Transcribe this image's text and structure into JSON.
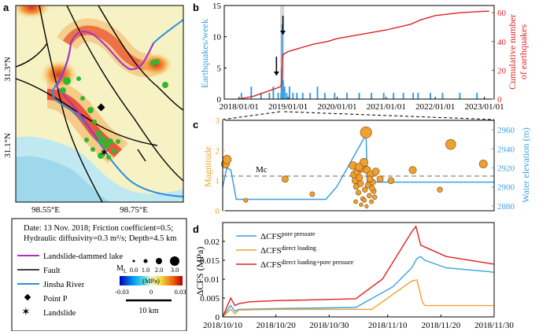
{
  "panels": {
    "a": {
      "letter": "a",
      "lat_labels": [
        "31.3°N",
        "31.1°N"
      ],
      "lon_labels": [
        "98.55°E",
        "98.75°E"
      ],
      "info_lines": [
        "Date: 13 Nov. 2018; Friction coefficient=0.5;",
        "Hydraulic diffusivity=0.3 m²/s; Depth=4.5 km"
      ],
      "legend": {
        "lake": "Landslide-dammed lake",
        "fault": "Fault",
        "river": "Jinsha River",
        "point_p": "Point P",
        "landslide": "Landslide",
        "ml_label": "M",
        "ml_sub": "L",
        "ml_values": [
          "0.0",
          "1.0",
          "2.0",
          "3.0"
        ],
        "colorbar_unit": "(MPa)",
        "colorbar_ticks": [
          "-0.03",
          "0",
          "0.03"
        ],
        "scalebar": "10 km"
      },
      "colors": {
        "fault": "#000000",
        "river": "#2e8fe0",
        "lake": "#b02ec0",
        "quake": "#2fb82f"
      }
    },
    "b": {
      "letter": "b",
      "ylabel_left": "Earthquakes/week",
      "ylabel_right_1": "Cumulative number",
      "ylabel_right_2": "of earthquakes",
      "colors": {
        "bars": "#3a9ee0",
        "line": "#e02020"
      }
    },
    "c": {
      "letter": "c",
      "ylabel_left": "Magnitude",
      "ylabel_right": "Water elevation (m)",
      "mc_label": "Mc",
      "colors": {
        "dots": "#f0a030",
        "water": "#3aa0e0"
      }
    },
    "d": {
      "letter": "d",
      "ylabel_main": "ΔCFS (MPa)",
      "legend": [
        {
          "main": "ΔCFS",
          "sup": "pore pressure",
          "color": "#3aa0e0"
        },
        {
          "main": "ΔCFS",
          "sup": "direct loading",
          "color": "#f0a030"
        },
        {
          "main": "ΔCFS",
          "sup": "direct loading+pore pressure",
          "color": "#e02020"
        }
      ]
    }
  },
  "chart_data": [
    {
      "id": "b",
      "type": "bar",
      "title": "",
      "xlabel": "",
      "ylabel": "Earthquakes/week",
      "ylabel_right": "Cumulative number of earthquakes",
      "x_ticks": [
        "2018/01/01",
        "2019/01/01",
        "2020/01/01",
        "2021/01/01",
        "2022/01/01",
        "2023/01/01"
      ],
      "ylim": [
        0,
        15
      ],
      "y_ticks": [
        "0",
        "5",
        "10",
        "15"
      ],
      "ylim_right": [
        0,
        65
      ],
      "y_ticks_right": [
        "0",
        "20",
        "40",
        "60"
      ],
      "weekly_bars": [
        {
          "year": 2018.05,
          "v": 1
        },
        {
          "year": 2018.25,
          "v": 2
        },
        {
          "year": 2018.45,
          "v": 1
        },
        {
          "year": 2018.62,
          "v": 1
        },
        {
          "year": 2018.7,
          "v": 2
        },
        {
          "year": 2018.8,
          "v": 1
        },
        {
          "year": 2018.86,
          "v": 1
        },
        {
          "year": 2018.87,
          "v": 5
        },
        {
          "year": 2018.88,
          "v": 12
        },
        {
          "year": 2018.9,
          "v": 3
        },
        {
          "year": 2018.93,
          "v": 2
        },
        {
          "year": 2018.97,
          "v": 1
        },
        {
          "year": 2019.03,
          "v": 2
        },
        {
          "year": 2019.1,
          "v": 1
        },
        {
          "year": 2019.18,
          "v": 1
        },
        {
          "year": 2019.3,
          "v": 1
        },
        {
          "year": 2019.45,
          "v": 1
        },
        {
          "year": 2019.6,
          "v": 2
        },
        {
          "year": 2019.75,
          "v": 1
        },
        {
          "year": 2019.95,
          "v": 1
        },
        {
          "year": 2020.2,
          "v": 1
        },
        {
          "year": 2020.45,
          "v": 1
        },
        {
          "year": 2020.7,
          "v": 1
        },
        {
          "year": 2020.95,
          "v": 1
        },
        {
          "year": 2021.15,
          "v": 1
        },
        {
          "year": 2021.35,
          "v": 1
        },
        {
          "year": 2021.55,
          "v": 1
        },
        {
          "year": 2021.65,
          "v": 1
        },
        {
          "year": 2021.9,
          "v": 1
        },
        {
          "year": 2022.15,
          "v": 1
        },
        {
          "year": 2022.5,
          "v": 1
        },
        {
          "year": 2022.85,
          "v": 1
        }
      ],
      "cumulative": [
        [
          2018.0,
          0
        ],
        [
          2018.3,
          2
        ],
        [
          2018.55,
          5
        ],
        [
          2018.8,
          8
        ],
        [
          2018.86,
          9
        ],
        [
          2018.875,
          15
        ],
        [
          2018.885,
          28
        ],
        [
          2018.9,
          31
        ],
        [
          2019.0,
          33
        ],
        [
          2019.2,
          35
        ],
        [
          2019.5,
          38
        ],
        [
          2019.8,
          40
        ],
        [
          2020.0,
          42
        ],
        [
          2020.5,
          45
        ],
        [
          2021.0,
          48
        ],
        [
          2021.5,
          52
        ],
        [
          2021.7,
          55
        ],
        [
          2022.0,
          58
        ],
        [
          2022.5,
          60
        ],
        [
          2023.0,
          61
        ],
        [
          2023.1,
          61
        ]
      ],
      "highlight_range": [
        2018.84,
        2018.92
      ]
    },
    {
      "id": "c",
      "type": "scatter",
      "ylabel": "Magnitude",
      "ylabel_right": "Water elevation (m)",
      "ylim": [
        0,
        3
      ],
      "y_ticks": [
        "0",
        "1",
        "2",
        "3"
      ],
      "ylim_right": [
        2875,
        2970
      ],
      "y_ticks_right": [
        "2880",
        "2900",
        "2920",
        "2940",
        "2960"
      ],
      "mc": 1.15,
      "points": [
        [
          1.0,
          1.55
        ],
        [
          1.6,
          1.7
        ],
        [
          8.5,
          0.35
        ],
        [
          23,
          1.05
        ],
        [
          33,
          0.55
        ],
        [
          48,
          1.5
        ],
        [
          48.4,
          1.2
        ],
        [
          48.8,
          1.0
        ],
        [
          49.2,
          0.8
        ],
        [
          49.6,
          1.3
        ],
        [
          50.0,
          0.6
        ],
        [
          50.4,
          1.1
        ],
        [
          50.8,
          0.9
        ],
        [
          51.2,
          1.4
        ],
        [
          51.6,
          0.4
        ],
        [
          52.0,
          1.6
        ],
        [
          52.4,
          0.7
        ],
        [
          52.8,
          2.6
        ],
        [
          53.2,
          1.35
        ],
        [
          53.6,
          0.85
        ],
        [
          54.0,
          0.5
        ],
        [
          54.4,
          1.2
        ],
        [
          54.8,
          0.3
        ],
        [
          55.2,
          0.95
        ],
        [
          55.6,
          0.65
        ],
        [
          56.0,
          0.45
        ],
        [
          56.4,
          1.3
        ],
        [
          49.0,
          0.3
        ],
        [
          51.0,
          0.2
        ],
        [
          53.0,
          0.15
        ],
        [
          55.0,
          0.75
        ],
        [
          50.2,
          1.45
        ],
        [
          52.2,
          0.35
        ],
        [
          54.2,
          1.05
        ],
        [
          58,
          1.05
        ],
        [
          62,
          1.0
        ],
        [
          70,
          1.35
        ],
        [
          80,
          0.7
        ],
        [
          84,
          2.2
        ],
        [
          96,
          1.55
        ]
      ],
      "water": [
        [
          0,
          2900
        ],
        [
          1.5,
          2920
        ],
        [
          3.0,
          2918
        ],
        [
          5,
          2887
        ],
        [
          38,
          2887
        ],
        [
          42,
          2900
        ],
        [
          52.8,
          2955
        ],
        [
          53.3,
          2905
        ],
        [
          100,
          2905
        ]
      ]
    },
    {
      "id": "d",
      "type": "line",
      "ylabel": "ΔCFS (MPa)",
      "x_ticks": [
        "2018/10/10",
        "2018/10/20",
        "2018/10/30",
        "2018/11/10",
        "2018/11/20",
        "2018/11/30"
      ],
      "ylim": [
        0,
        0.025
      ],
      "y_ticks": [
        "0",
        "0.005",
        "0.01",
        "0.015",
        "0.02"
      ],
      "series": [
        {
          "name": "pore pressure",
          "points": [
            [
              10,
              0
            ],
            [
              11.5,
              0.003
            ],
            [
              12.3,
              0.0015
            ],
            [
              13,
              0.002
            ],
            [
              20,
              0.0022
            ],
            [
              35,
              0.0025
            ],
            [
              42,
              0.008
            ],
            [
              45.5,
              0.013
            ],
            [
              46.5,
              0.0155
            ],
            [
              47.2,
              0.016
            ],
            [
              48,
              0.015
            ],
            [
              52,
              0.013
            ],
            [
              60,
              0.012
            ],
            [
              60.9,
              0.0118
            ]
          ]
        },
        {
          "name": "direct loading",
          "points": [
            [
              10,
              0
            ],
            [
              11.5,
              0.002
            ],
            [
              12.3,
              0.0008
            ],
            [
              13,
              0.0018
            ],
            [
              20,
              0.002
            ],
            [
              38,
              0.002
            ],
            [
              45.5,
              0.0095
            ],
            [
              46.5,
              0.0098
            ],
            [
              47.5,
              0.004
            ],
            [
              48,
              0.003
            ],
            [
              60.9,
              0.003
            ]
          ]
        },
        {
          "name": "direct loading+pore pressure",
          "points": [
            [
              10,
              0
            ],
            [
              11.5,
              0.005
            ],
            [
              12.3,
              0.003
            ],
            [
              13,
              0.0035
            ],
            [
              15,
              0.004
            ],
            [
              20,
              0.0043
            ],
            [
              35,
              0.0048
            ],
            [
              40,
              0.01
            ],
            [
              45.5,
              0.0225
            ],
            [
              46.3,
              0.024
            ],
            [
              47.2,
              0.019
            ],
            [
              48,
              0.0185
            ],
            [
              52,
              0.016
            ],
            [
              60.9,
              0.014
            ]
          ]
        }
      ]
    }
  ]
}
